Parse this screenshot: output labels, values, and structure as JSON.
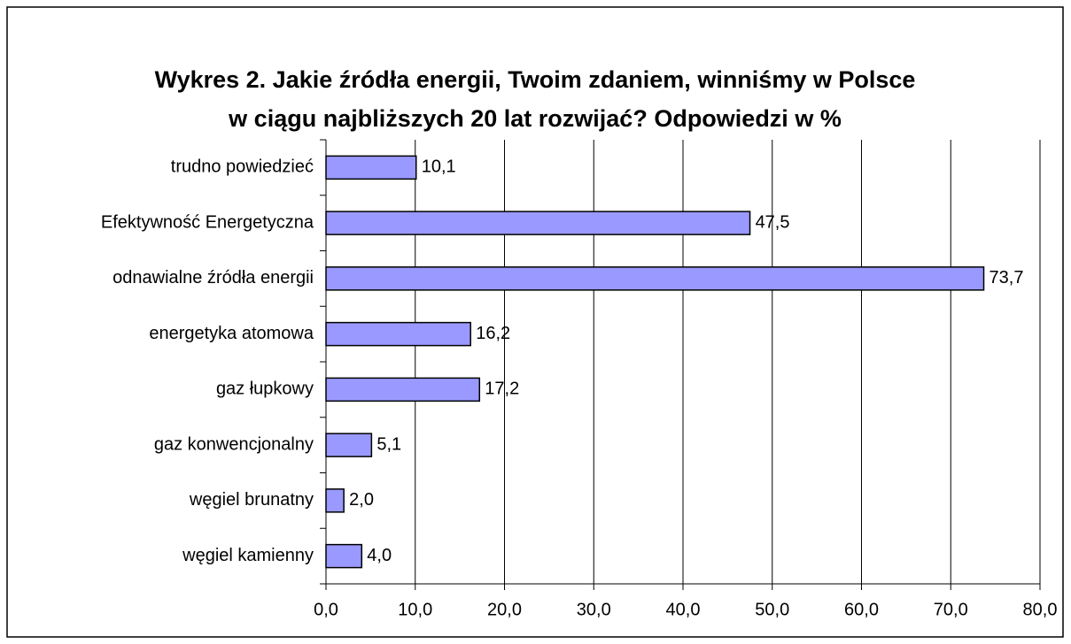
{
  "chart_data": {
    "type": "bar",
    "orientation": "horizontal",
    "title": "Wykres 2. Jakie źródła energii, Twoim zdaniem, winniśmy w Polsce w ciągu najbliższych 20 lat rozwijać? Odpowiedzi w %",
    "categories": [
      "trudno powiedzieć",
      "Efektywność Energetyczna",
      "odnawialne źródła energii",
      "energetyka atomowa",
      "gaz łupkowy",
      "gaz konwencjonalny",
      "węgiel brunatny",
      "węgiel kamienny"
    ],
    "values": [
      10.1,
      47.5,
      73.7,
      16.2,
      17.2,
      5.1,
      2.0,
      4.0
    ],
    "value_labels": [
      "10,1",
      "47,5",
      "73,7",
      "16,2",
      "17,2",
      "5,1",
      "2,0",
      "4,0"
    ],
    "color": "#9999ff",
    "xlim": [
      0,
      80
    ],
    "xticks": [
      {
        "value": 0,
        "label": "0,0"
      },
      {
        "value": 10,
        "label": "10,0"
      },
      {
        "value": 20,
        "label": "20,0"
      },
      {
        "value": 30,
        "label": "30,0"
      },
      {
        "value": 40,
        "label": "40,0"
      },
      {
        "value": 50,
        "label": "50,0"
      },
      {
        "value": 60,
        "label": "60,0"
      },
      {
        "value": 70,
        "label": "70,0"
      },
      {
        "value": 80,
        "label": "80,0"
      }
    ],
    "grid": true
  }
}
